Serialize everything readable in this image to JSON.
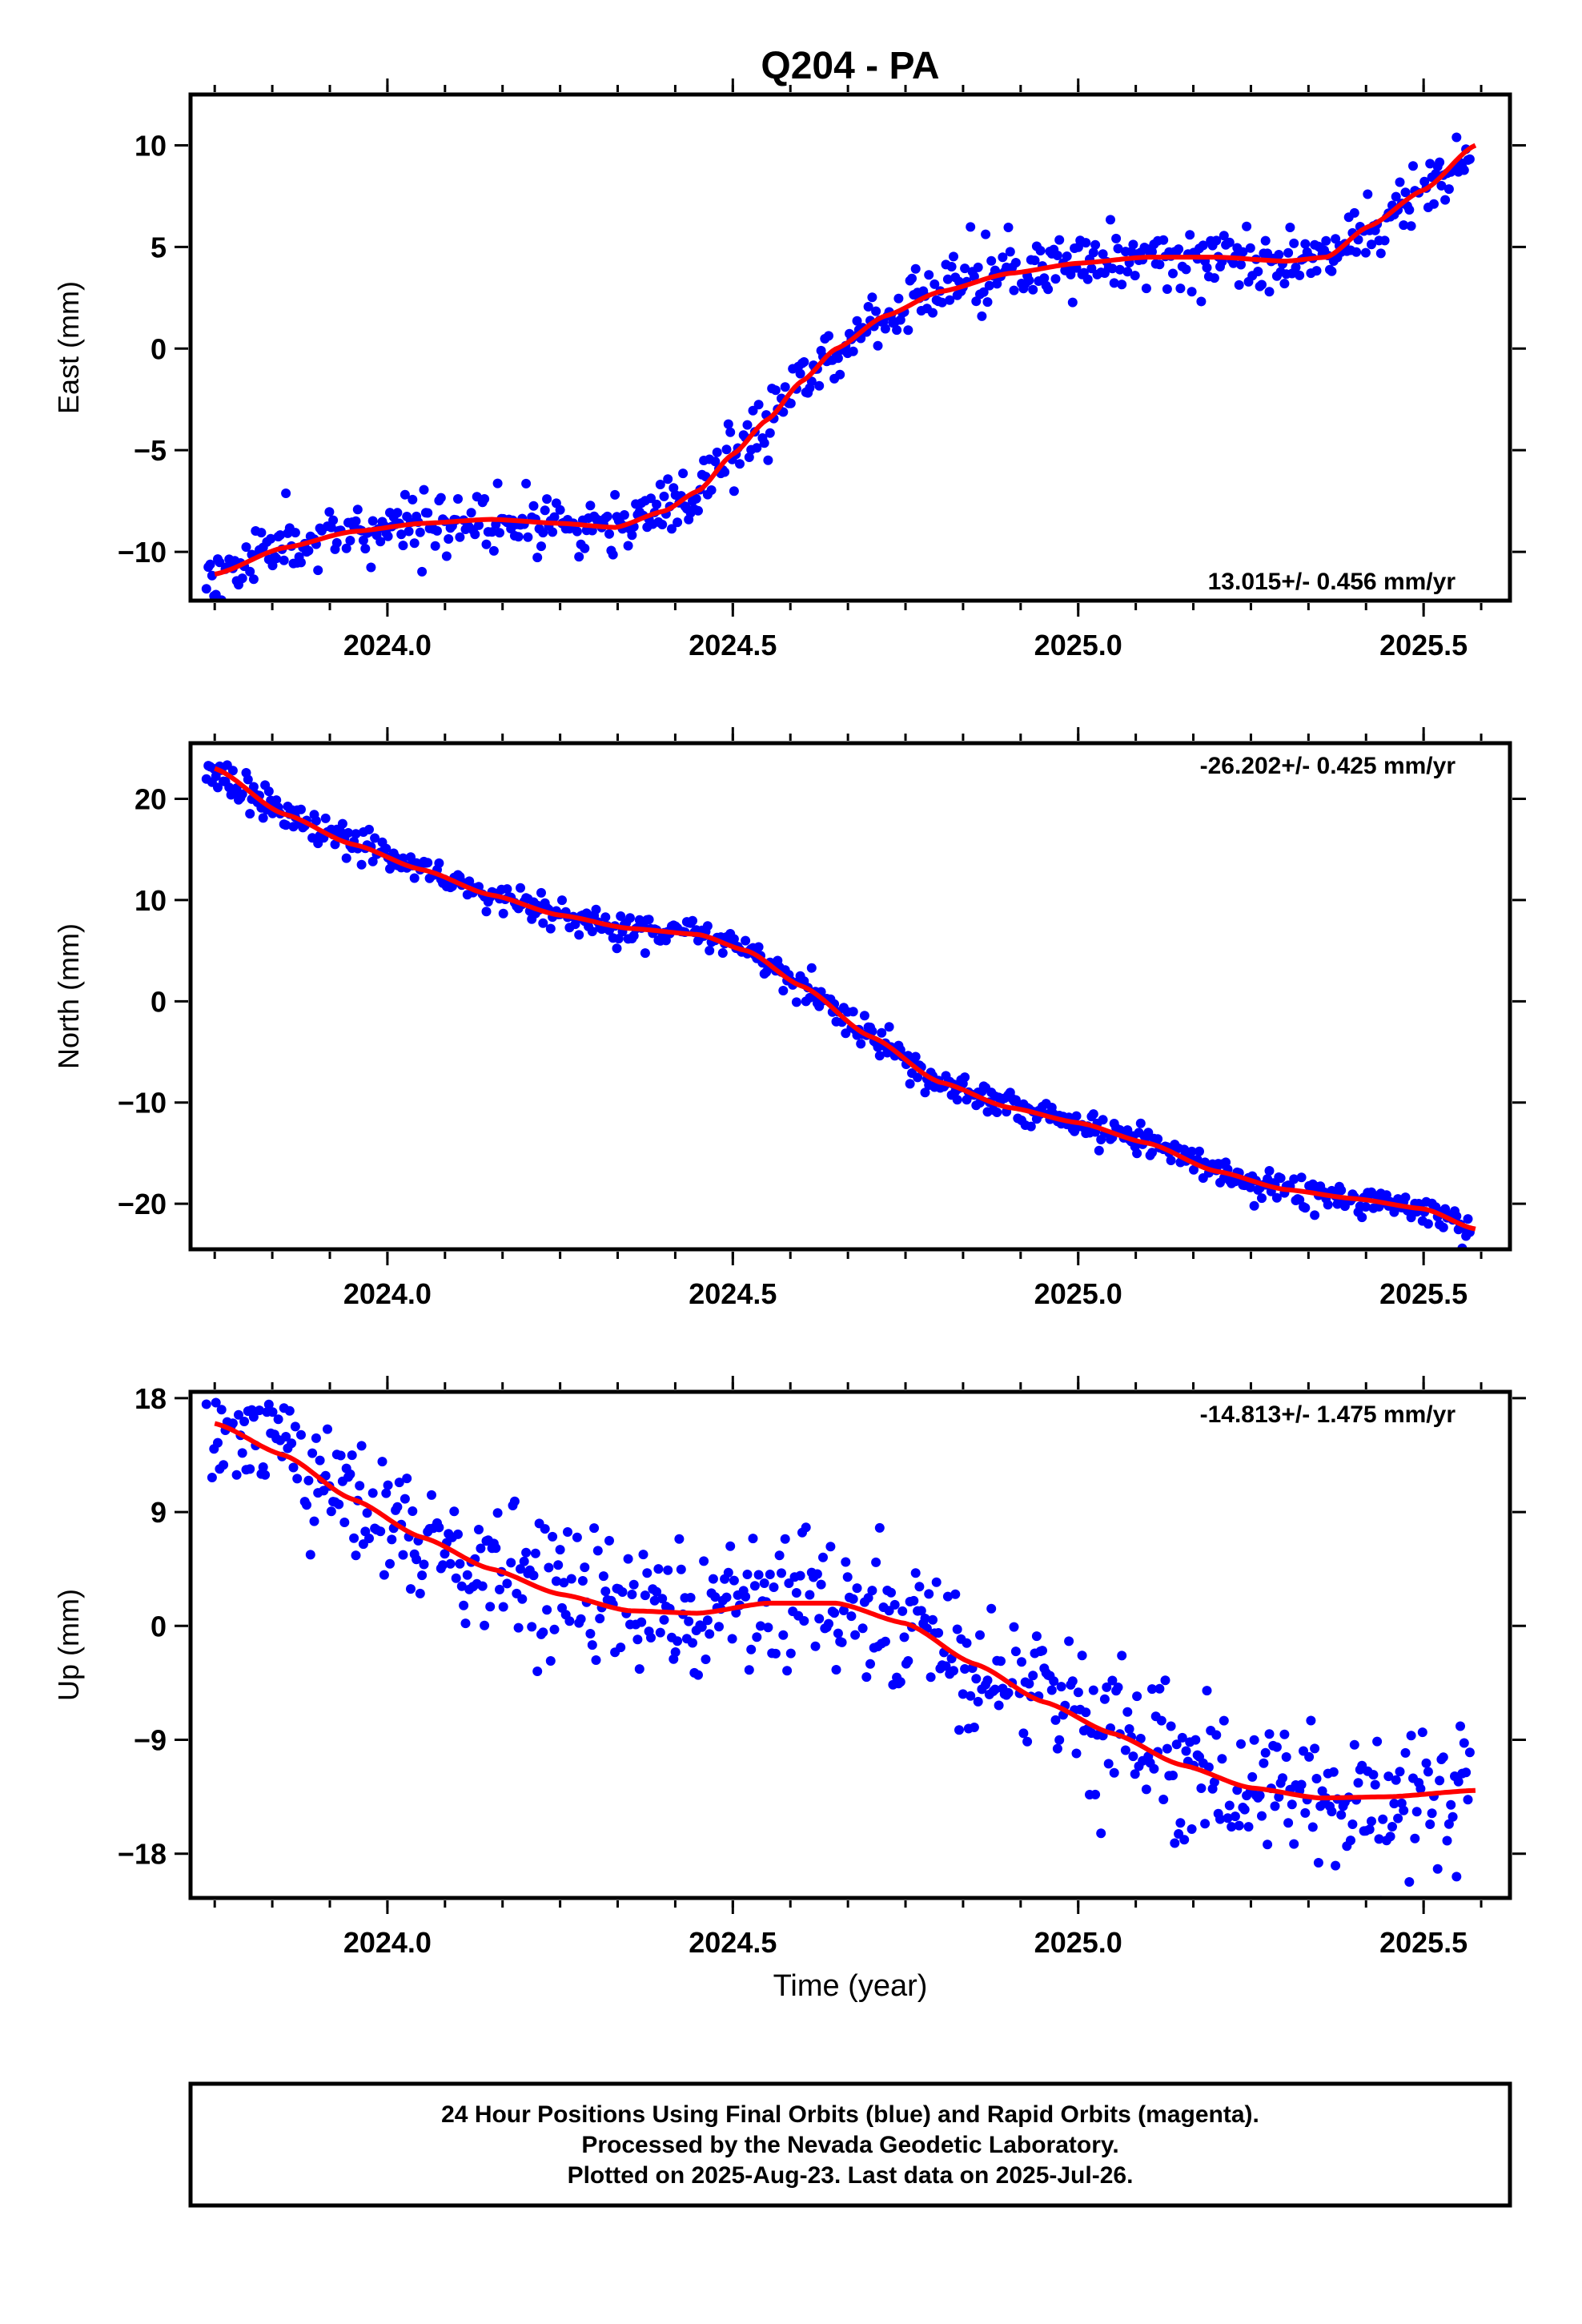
{
  "title": "Q204 - PA",
  "colors": {
    "points": "#0000ff",
    "fit": "#ff0000",
    "frame": "#000000"
  },
  "xaxis": {
    "label": "Time (year)",
    "range": [
      2023.715,
      2025.625
    ],
    "ticks": [
      {
        "value": 2024.0,
        "label": "2024.0"
      },
      {
        "value": 2024.5,
        "label": "2024.5"
      },
      {
        "value": 2025.0,
        "label": "2025.0"
      },
      {
        "value": 2025.5,
        "label": "2025.5"
      }
    ],
    "minor_tick_step": 0.0833333
  },
  "chart_data": [
    {
      "type": "scatter",
      "name": "east",
      "ylabel": "East (mm)",
      "ylim": [
        -12.4,
        12.5
      ],
      "yticks": [
        -10,
        -5,
        0,
        5,
        10
      ],
      "rate_text": "13.015+/- 0.456 mm/yr",
      "rate_position": "bottom-right",
      "fit_knots": [
        [
          2023.75,
          -11.1
        ],
        [
          2023.85,
          -9.8
        ],
        [
          2023.95,
          -9.0
        ],
        [
          2024.05,
          -8.6
        ],
        [
          2024.15,
          -8.4
        ],
        [
          2024.25,
          -8.6
        ],
        [
          2024.33,
          -8.8
        ],
        [
          2024.4,
          -8.0
        ],
        [
          2024.45,
          -7.0
        ],
        [
          2024.5,
          -5.2
        ],
        [
          2024.55,
          -3.5
        ],
        [
          2024.6,
          -1.6
        ],
        [
          2024.65,
          0.0
        ],
        [
          2024.72,
          1.6
        ],
        [
          2024.8,
          2.8
        ],
        [
          2024.9,
          3.7
        ],
        [
          2025.0,
          4.2
        ],
        [
          2025.1,
          4.5
        ],
        [
          2025.2,
          4.5
        ],
        [
          2025.3,
          4.3
        ],
        [
          2025.36,
          4.5
        ],
        [
          2025.42,
          6.0
        ],
        [
          2025.5,
          7.8
        ],
        [
          2025.575,
          10.0
        ]
      ],
      "noise_sd": 0.75,
      "seed": 11
    },
    {
      "type": "scatter",
      "name": "north",
      "ylabel": "North (mm)",
      "ylim": [
        -24.5,
        25.5
      ],
      "yticks": [
        -20,
        -10,
        0,
        10,
        20
      ],
      "rate_text": "-26.202+/- 0.425 mm/yr",
      "rate_position": "top-right",
      "fit_knots": [
        [
          2023.75,
          23.0
        ],
        [
          2023.85,
          18.5
        ],
        [
          2023.95,
          15.5
        ],
        [
          2024.05,
          13.0
        ],
        [
          2024.15,
          10.5
        ],
        [
          2024.25,
          8.5
        ],
        [
          2024.35,
          7.2
        ],
        [
          2024.45,
          6.6
        ],
        [
          2024.52,
          5.0
        ],
        [
          2024.6,
          1.5
        ],
        [
          2024.7,
          -3.5
        ],
        [
          2024.8,
          -8.0
        ],
        [
          2024.9,
          -10.5
        ],
        [
          2025.0,
          -12.0
        ],
        [
          2025.1,
          -14.0
        ],
        [
          2025.2,
          -16.8
        ],
        [
          2025.3,
          -18.6
        ],
        [
          2025.4,
          -19.5
        ],
        [
          2025.5,
          -20.5
        ],
        [
          2025.575,
          -22.5
        ]
      ],
      "noise_sd": 0.8,
      "seed": 23
    },
    {
      "type": "scatter",
      "name": "up",
      "ylabel": "Up (mm)",
      "ylim": [
        -21.5,
        18.5
      ],
      "yticks": [
        -18,
        -9,
        0,
        9,
        18
      ],
      "rate_text": "-14.813+/- 1.475 mm/yr",
      "rate_position": "top-right",
      "fit_knots": [
        [
          2023.75,
          16.0
        ],
        [
          2023.85,
          13.5
        ],
        [
          2023.95,
          10.0
        ],
        [
          2024.05,
          7.0
        ],
        [
          2024.15,
          4.5
        ],
        [
          2024.25,
          2.5
        ],
        [
          2024.35,
          1.2
        ],
        [
          2024.45,
          1.0
        ],
        [
          2024.55,
          1.8
        ],
        [
          2024.65,
          1.8
        ],
        [
          2024.75,
          0.2
        ],
        [
          2024.85,
          -3.0
        ],
        [
          2024.95,
          -6.0
        ],
        [
          2025.05,
          -8.5
        ],
        [
          2025.15,
          -11.0
        ],
        [
          2025.25,
          -12.8
        ],
        [
          2025.35,
          -13.6
        ],
        [
          2025.45,
          -13.5
        ],
        [
          2025.575,
          -13.0
        ]
      ],
      "noise_sd": 2.8,
      "seed": 37
    }
  ],
  "footer": {
    "line1": "24 Hour Positions Using Final Orbits (blue) and Rapid Orbits (magenta).",
    "line2": "Processed by the Nevada Geodetic Laboratory.",
    "line3": "Plotted on 2025-Aug-23. Last data on 2025-Jul-26."
  }
}
